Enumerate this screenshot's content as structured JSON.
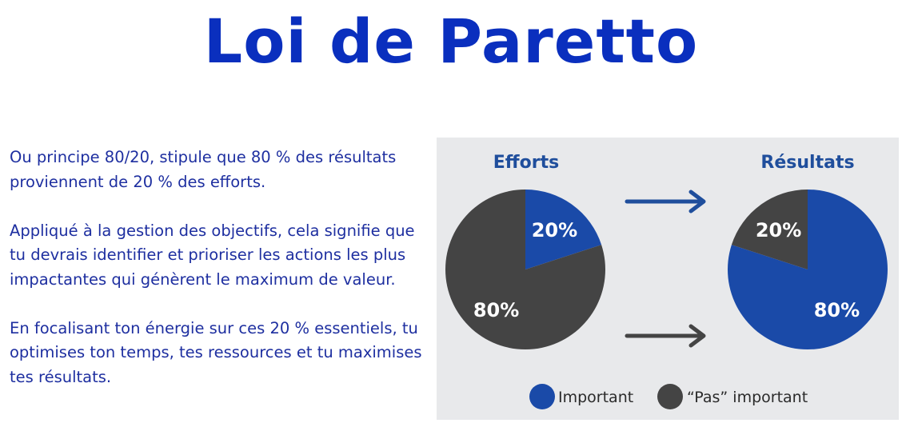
{
  "page": {
    "title": "Loi de Paretto",
    "paragraphs": [
      "Ou principe 80/20, stipule que 80 % des résultats proviennent de 20 % des efforts.",
      "Appliqué à la gestion des objectifs, cela signifie que tu devrais identifier et prioriser les actions les plus impactantes qui génèrent le maximum de valeur.",
      "En focalisant ton énergie sur ces 20 % essentiels, tu optimises ton temps, tes ressources et tu maximises tes résultats."
    ]
  },
  "colors": {
    "title": "#0a2fbe",
    "body_text": "#1e2fa0",
    "panel_bg": "#e8e9eb",
    "heading": "#1f4e9c",
    "important": "#1a4aa8",
    "not_important": "#444444",
    "arrow_blue": "#1f4e9c",
    "arrow_gray": "#444444",
    "slice_label": "#ffffff",
    "legend_text": "#2a2a2a"
  },
  "chart_data": [
    {
      "type": "pie",
      "title": "Efforts",
      "slices": [
        {
          "name": "Important",
          "value": 20,
          "label": "20%",
          "color": "#1a4aa8"
        },
        {
          "name": "“Pas” important",
          "value": 80,
          "label": "80%",
          "color": "#444444"
        }
      ],
      "legend": "bottom"
    },
    {
      "type": "pie",
      "title": "Résultats",
      "slices": [
        {
          "name": "Important",
          "value": 80,
          "label": "80%",
          "color": "#1a4aa8"
        },
        {
          "name": "“Pas” important",
          "value": 20,
          "label": "20%",
          "color": "#444444"
        }
      ],
      "legend": "bottom"
    }
  ],
  "legend": {
    "items": [
      {
        "label": "Important",
        "color": "#1a4aa8"
      },
      {
        "label": "“Pas” important",
        "color": "#444444"
      }
    ]
  }
}
